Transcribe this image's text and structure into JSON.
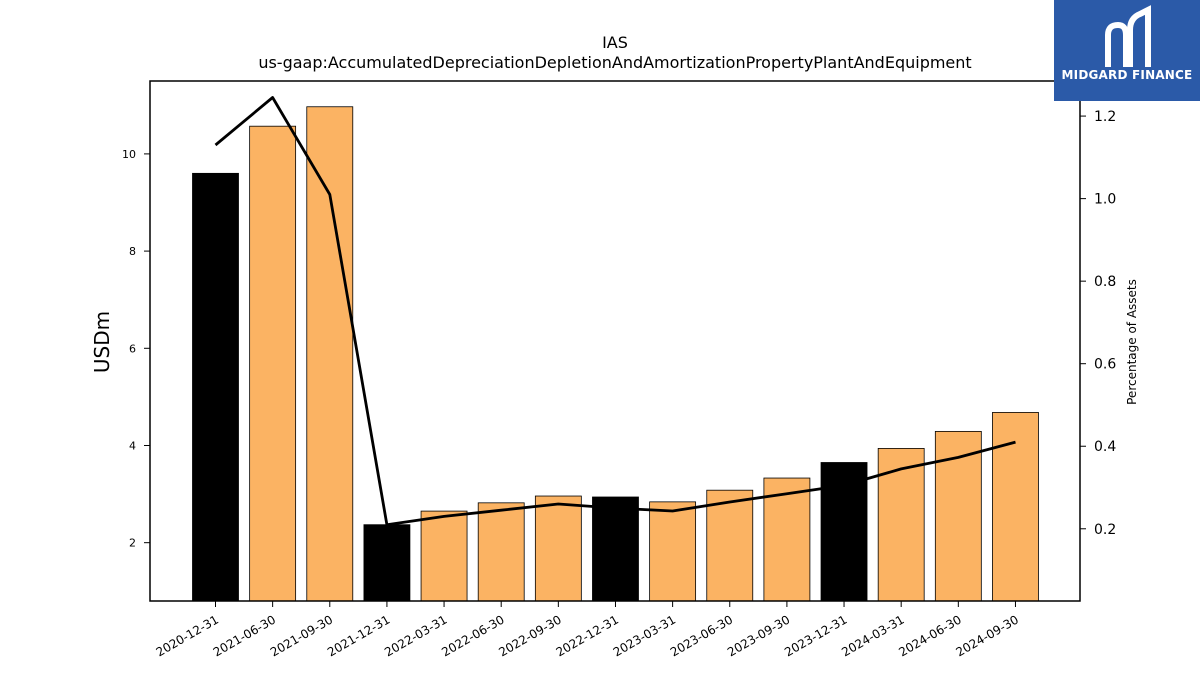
{
  "chart_data": {
    "type": "bar",
    "title": "IAS",
    "subtitle": "us-gaap:AccumulatedDepreciationDepletionAndAmortizationPropertyPlantAndEquipment",
    "ylabel": "USDm",
    "y2label": "Percentage of Assets",
    "ylim": [
      0.8,
      11.5
    ],
    "y2lim": [
      0.025,
      1.285
    ],
    "yticks": [
      2,
      4,
      6,
      8,
      10
    ],
    "y2ticks": [
      0.2,
      0.4,
      0.6,
      0.8,
      1.0,
      1.2
    ],
    "grid": false,
    "categories": [
      "2020-12-31",
      "2021-06-30",
      "2021-09-30",
      "2021-12-31",
      "2022-03-31",
      "2022-06-30",
      "2022-09-30",
      "2022-12-31",
      "2023-03-31",
      "2023-06-30",
      "2023-09-30",
      "2023-12-31",
      "2024-03-31",
      "2024-06-30",
      "2024-09-30"
    ],
    "series": [
      {
        "kind": "bar",
        "values": [
          9.6,
          10.57,
          10.97,
          2.37,
          2.65,
          2.82,
          2.96,
          2.94,
          2.84,
          3.08,
          3.33,
          3.65,
          3.94,
          4.29,
          4.68
        ],
        "colors": [
          "#000000",
          "#fbb363",
          "#fbb363",
          "#000000",
          "#fbb363",
          "#fbb363",
          "#fbb363",
          "#000000",
          "#fbb363",
          "#fbb363",
          "#fbb363",
          "#000000",
          "#fbb363",
          "#fbb363",
          "#fbb363"
        ]
      },
      {
        "kind": "line",
        "axis": "right",
        "color": "#000000",
        "values": [
          1.13,
          1.245,
          1.01,
          0.21,
          0.23,
          0.245,
          0.26,
          0.25,
          0.243,
          0.265,
          0.285,
          0.305,
          0.345,
          0.373,
          0.41
        ]
      }
    ]
  },
  "logo": {
    "text": "MIDGARD FINANCE",
    "background": "#2b5aa8"
  }
}
